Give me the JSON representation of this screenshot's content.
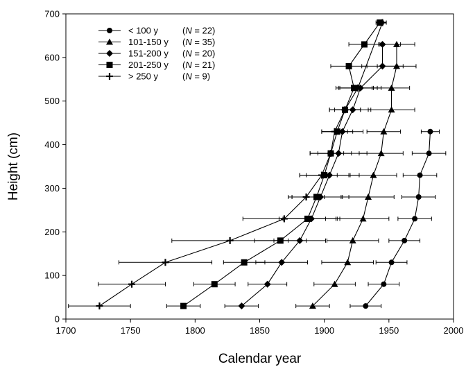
{
  "chart_data": {
    "type": "line",
    "title": "",
    "xlabel": "Calendar year",
    "ylabel": "Height (cm)",
    "xlim": [
      1700,
      2000
    ],
    "ylim": [
      0,
      700
    ],
    "xticks": [
      1700,
      1750,
      1800,
      1850,
      1900,
      1950,
      2000
    ],
    "yticks": [
      0,
      100,
      200,
      300,
      400,
      500,
      600,
      700
    ],
    "grid": false,
    "legend_position": "top-left",
    "series": [
      {
        "name": "< 100 y",
        "n_label": "(N = 22)",
        "marker": "circle",
        "points": [
          {
            "x": 1932,
            "y": 30,
            "err": 12
          },
          {
            "x": 1946,
            "y": 80,
            "err": 12
          },
          {
            "x": 1952,
            "y": 130,
            "err": 12
          },
          {
            "x": 1962,
            "y": 180,
            "err": 12
          },
          {
            "x": 1970,
            "y": 230,
            "err": 13
          },
          {
            "x": 1973,
            "y": 280,
            "err": 13
          },
          {
            "x": 1974,
            "y": 330,
            "err": 13
          },
          {
            "x": 1981,
            "y": 380,
            "err": 13
          },
          {
            "x": 1982,
            "y": 430,
            "err": 7
          }
        ]
      },
      {
        "name": "101-150 y",
        "n_label": "(N = 35)",
        "marker": "triangle",
        "points": [
          {
            "x": 1891,
            "y": 30,
            "err": 13
          },
          {
            "x": 1908,
            "y": 80,
            "err": 16
          },
          {
            "x": 1918,
            "y": 130,
            "err": 20
          },
          {
            "x": 1922,
            "y": 180,
            "err": 20
          },
          {
            "x": 1930,
            "y": 230,
            "err": 20
          },
          {
            "x": 1934,
            "y": 280,
            "err": 20
          },
          {
            "x": 1938,
            "y": 330,
            "err": 18
          },
          {
            "x": 1944,
            "y": 380,
            "err": 17
          },
          {
            "x": 1946,
            "y": 430,
            "err": 13
          },
          {
            "x": 1952,
            "y": 480,
            "err": 18
          },
          {
            "x": 1952,
            "y": 530,
            "err": 14
          },
          {
            "x": 1956,
            "y": 580,
            "err": 15
          },
          {
            "x": 1956,
            "y": 630,
            "err": 14
          }
        ]
      },
      {
        "name": "151-200 y",
        "n_label": "(N = 20)",
        "marker": "diamond",
        "points": [
          {
            "x": 1836,
            "y": 30,
            "err": 13
          },
          {
            "x": 1856,
            "y": 80,
            "err": 15
          },
          {
            "x": 1867,
            "y": 130,
            "err": 20
          },
          {
            "x": 1881,
            "y": 180,
            "err": 20
          },
          {
            "x": 1890,
            "y": 230,
            "err": 22
          },
          {
            "x": 1897,
            "y": 280,
            "err": 22
          },
          {
            "x": 1904,
            "y": 330,
            "err": 23
          },
          {
            "x": 1911,
            "y": 380,
            "err": 22
          },
          {
            "x": 1914,
            "y": 430,
            "err": 16
          },
          {
            "x": 1922,
            "y": 480,
            "err": 14
          },
          {
            "x": 1928,
            "y": 530,
            "err": 16
          },
          {
            "x": 1945,
            "y": 580,
            "err": 16
          },
          {
            "x": 1945,
            "y": 630,
            "err": 14
          }
        ]
      },
      {
        "name": "201-250 y",
        "n_label": "(N = 21)",
        "marker": "square",
        "points": [
          {
            "x": 1791,
            "y": 30,
            "err": 13
          },
          {
            "x": 1815,
            "y": 80,
            "err": 16
          },
          {
            "x": 1838,
            "y": 130,
            "err": 16
          },
          {
            "x": 1866,
            "y": 180,
            "err": 20
          },
          {
            "x": 1887,
            "y": 230,
            "err": 22
          },
          {
            "x": 1894,
            "y": 280,
            "err": 19
          },
          {
            "x": 1900,
            "y": 330,
            "err": 19
          },
          {
            "x": 1905,
            "y": 380,
            "err": 16
          },
          {
            "x": 1910,
            "y": 430,
            "err": 12
          },
          {
            "x": 1916,
            "y": 480,
            "err": 12
          },
          {
            "x": 1923,
            "y": 530,
            "err": 14
          },
          {
            "x": 1919,
            "y": 580,
            "err": 14
          },
          {
            "x": 1931,
            "y": 630,
            "err": 12
          },
          {
            "x": 1943,
            "y": 680,
            "err": 3
          }
        ]
      },
      {
        "name": "> 250 y",
        "n_label": "(N = 9)",
        "marker": "plus",
        "points": [
          {
            "x": 1726,
            "y": 30,
            "err": 24
          },
          {
            "x": 1751,
            "y": 80,
            "err": 26
          },
          {
            "x": 1777,
            "y": 130,
            "err": 36
          },
          {
            "x": 1827,
            "y": 180,
            "err": 45
          },
          {
            "x": 1869,
            "y": 230,
            "err": 32
          },
          {
            "x": 1886,
            "y": 280,
            "err": 14
          },
          {
            "x": 1898,
            "y": 330,
            "err": 12
          },
          {
            "x": 1905,
            "y": 380,
            "err": 10
          },
          {
            "x": 1908,
            "y": 430,
            "err": 10
          },
          {
            "x": 1916,
            "y": 480,
            "err": 12
          },
          {
            "x": 1926,
            "y": 530,
            "err": 15
          },
          {
            "x": 1945,
            "y": 680,
            "err": 3
          }
        ]
      }
    ]
  }
}
